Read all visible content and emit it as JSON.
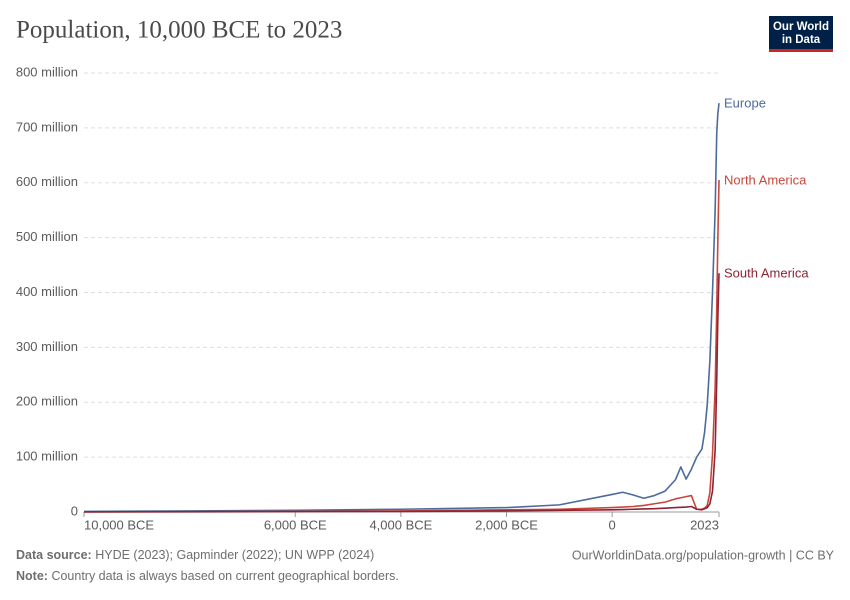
{
  "chart_data": {
    "type": "line",
    "title": "Population, 10,000 BCE to 2023",
    "logo": [
      "Our World",
      "in Data"
    ],
    "source_label": "Data source:",
    "source_text": "HYDE (2023); Gapminder (2022); UN WPP (2024)",
    "url": "OurWorldinData.org/population-growth | CC BY",
    "note_label": "Note:",
    "note_text": "Country data is always based on current geographical borders.",
    "x": [
      -10000,
      -8000,
      -6000,
      -4000,
      -2000,
      -1000,
      0,
      200,
      400,
      600,
      800,
      1000,
      1200,
      1300,
      1400,
      1500,
      1600,
      1700,
      1750,
      1800,
      1850,
      1900,
      1950,
      1980,
      2000,
      2023
    ],
    "series": [
      {
        "name": "Europe",
        "color": "#4c6a9c",
        "values": [
          1000000,
          2000000,
          3000000,
          5000000,
          8000000,
          13000000,
          32000000,
          36000000,
          31000000,
          25000000,
          30000000,
          38000000,
          59000000,
          82000000,
          60000000,
          78000000,
          100000000,
          115000000,
          145000000,
          195000000,
          275000000,
          400000000,
          550000000,
          690000000,
          725000000,
          745000000
        ]
      },
      {
        "name": "North America",
        "color": "#c8473d",
        "values": [
          300000,
          600000,
          1000000,
          2000000,
          4000000,
          5000000,
          8000000,
          9000000,
          10000000,
          12000000,
          15000000,
          18000000,
          24000000,
          26000000,
          28000000,
          30000000,
          5000000,
          5000000,
          7000000,
          12000000,
          35000000,
          105000000,
          225000000,
          370000000,
          490000000,
          605000000
        ]
      },
      {
        "name": "South America",
        "color": "#8c2434",
        "values": [
          200000,
          400000,
          700000,
          1000000,
          2000000,
          3000000,
          4000000,
          4500000,
          5000000,
          5500000,
          6000000,
          7000000,
          8000000,
          8500000,
          9000000,
          10000000,
          5000000,
          4000000,
          6000000,
          8000000,
          15000000,
          38000000,
          113000000,
          240000000,
          350000000,
          435000000
        ]
      }
    ],
    "xlim": [
      -10000,
      2023
    ],
    "xticks": [
      {
        "value": -10000,
        "label": "10,000 BCE"
      },
      {
        "value": -6000,
        "label": "6,000 BCE"
      },
      {
        "value": -4000,
        "label": "4,000 BCE"
      },
      {
        "value": -2000,
        "label": "2,000 BCE"
      },
      0,
      2023
    ],
    "ylim": [
      0,
      800000000
    ],
    "yticks": [
      0,
      {
        "value": 100000000,
        "label": "100 million"
      },
      {
        "value": 200000000,
        "label": "200 million"
      },
      {
        "value": 300000000,
        "label": "300 million"
      },
      {
        "value": 400000000,
        "label": "400 million"
      },
      {
        "value": 500000000,
        "label": "500 million"
      },
      {
        "value": 600000000,
        "label": "600 million"
      },
      {
        "value": 700000000,
        "label": "700 million"
      },
      {
        "value": 800000000,
        "label": "800 million"
      }
    ],
    "grid": true
  }
}
